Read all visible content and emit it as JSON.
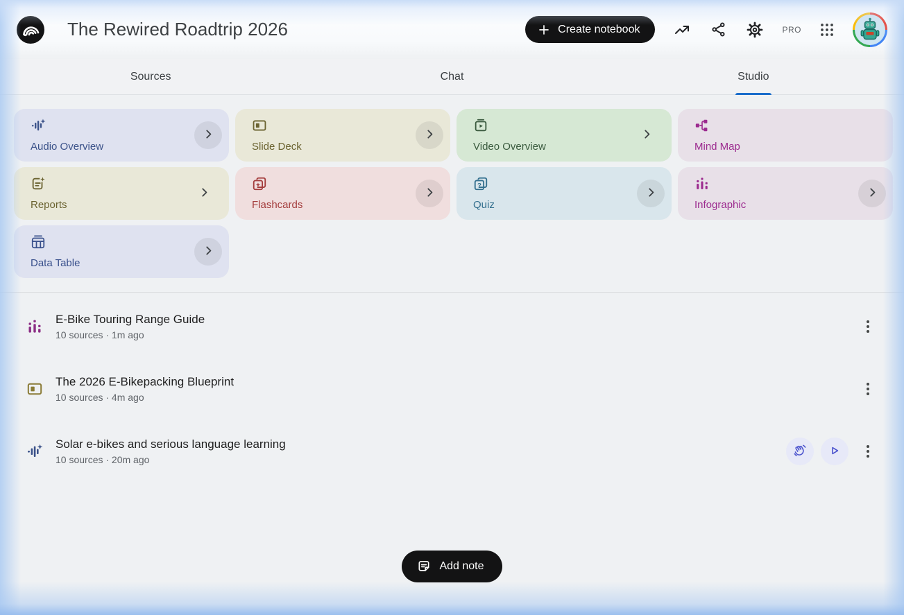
{
  "header": {
    "title": "The Rewired Roadtrip 2026",
    "create_button_label": "Create notebook",
    "pro_badge": "PRO"
  },
  "tabs": [
    {
      "label": "Sources",
      "active": false
    },
    {
      "label": "Chat",
      "active": false
    },
    {
      "label": "Studio",
      "active": true
    }
  ],
  "colors": {
    "tab_underline": "#1a6dcb",
    "action_button_fg": "#4d55ce",
    "action_button_bg": "#e7e9f8"
  },
  "studio": {
    "cards": [
      {
        "label": "Audio Overview",
        "icon": "audio-waveform-icon",
        "bg": "#dfe2f0",
        "fg": "#3b5289",
        "chevron": "circle"
      },
      {
        "label": "Slide Deck",
        "icon": "slide-deck-icon",
        "bg": "#e9e8d8",
        "fg": "#6b6331",
        "chevron": "circle"
      },
      {
        "label": "Video Overview",
        "icon": "video-icon",
        "bg": "#d6e8d4",
        "fg": "#3a5a3e",
        "chevron": "plain"
      },
      {
        "label": "Mind Map",
        "icon": "mind-map-icon",
        "bg": "#e8e0e8",
        "fg": "#9c2b8f",
        "chevron": "none"
      },
      {
        "label": "Reports",
        "icon": "report-icon",
        "bg": "#e9e8d8",
        "fg": "#6b6331",
        "chevron": "plain"
      },
      {
        "label": "Flashcards",
        "icon": "flashcards-icon",
        "bg": "#f0dede",
        "fg": "#a43d3d",
        "chevron": "circle"
      },
      {
        "label": "Quiz",
        "icon": "quiz-icon",
        "bg": "#d9e6ec",
        "fg": "#336f8e",
        "chevron": "circle"
      },
      {
        "label": "Infographic",
        "icon": "infographic-icon",
        "bg": "#e8e0e8",
        "fg": "#9c2b8f",
        "chevron": "circle"
      },
      {
        "label": "Data Table",
        "icon": "data-table-icon",
        "bg": "#dfe2f0",
        "fg": "#39508c",
        "chevron": "circle"
      }
    ]
  },
  "artifacts": [
    {
      "title": "E-Bike Touring Range Guide",
      "meta": "10 sources · 1m ago",
      "icon": "infographic-icon",
      "icon_color": "#8c2d85",
      "actions": []
    },
    {
      "title": "The 2026 E-Bikepacking Blueprint",
      "meta": "10 sources · 4m ago",
      "icon": "slide-deck-icon",
      "icon_color": "#8a7b36",
      "actions": []
    },
    {
      "title": "Solar e-bikes and serious language learning",
      "meta": "10 sources · 20m ago",
      "icon": "audio-waveform-icon",
      "icon_color": "#3b5289",
      "actions": [
        "interactive-mode",
        "play"
      ]
    }
  ],
  "add_note_button_label": "Add note"
}
